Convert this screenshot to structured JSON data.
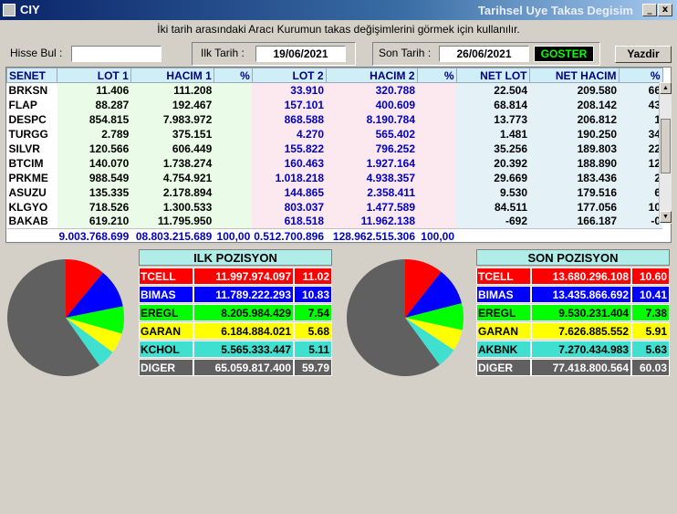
{
  "app": {
    "name": "CIY",
    "window_title": "Tarihsel Uye Takas Degisim",
    "instruction": "İki tarih arasındaki  Aracı Kurumun takas değişimlerini görmek için kullanılır."
  },
  "window_buttons": {
    "minimize": "_",
    "close": "x"
  },
  "controls": {
    "hisse_label": "Hisse Bul :",
    "hisse_value": "",
    "ilk_label": "Ilk Tarih :",
    "ilk_value": "19/06/2021",
    "son_label": "Son Tarih :",
    "son_value": "26/06/2021",
    "goster_label": "GOSTER",
    "yazdir_label": "Yazdir"
  },
  "table": {
    "headers": [
      "SENET",
      "LOT 1",
      "HACIM 1",
      "%",
      "LOT 2",
      "HACIM 2",
      "%",
      "NET LOT",
      "NET HACIM",
      "%"
    ],
    "rows": [
      [
        "BRKSN",
        "11.406",
        "111.208",
        "",
        "33.910",
        "320.788",
        "",
        "22.504",
        "209.580",
        "66"
      ],
      [
        "FLAP",
        "88.287",
        "192.467",
        "",
        "157.101",
        "400.609",
        "",
        "68.814",
        "208.142",
        "43"
      ],
      [
        "DESPC",
        "854.815",
        "7.983.972",
        "",
        "868.588",
        "8.190.784",
        "",
        "13.773",
        "206.812",
        "1"
      ],
      [
        "TURGG",
        "2.789",
        "375.151",
        "",
        "4.270",
        "565.402",
        "",
        "1.481",
        "190.250",
        "34"
      ],
      [
        "SILVR",
        "120.566",
        "606.449",
        "",
        "155.822",
        "796.252",
        "",
        "35.256",
        "189.803",
        "22"
      ],
      [
        "BTCIM",
        "140.070",
        "1.738.274",
        "",
        "160.463",
        "1.927.164",
        "",
        "20.392",
        "188.890",
        "12"
      ],
      [
        "PRKME",
        "988.549",
        "4.754.921",
        "",
        "1.018.218",
        "4.938.357",
        "",
        "29.669",
        "183.436",
        "2"
      ],
      [
        "ASUZU",
        "135.335",
        "2.178.894",
        "",
        "144.865",
        "2.358.411",
        "",
        "9.530",
        "179.516",
        "6"
      ],
      [
        "KLGYO",
        "718.526",
        "1.300.533",
        "",
        "803.037",
        "1.477.589",
        "",
        "84.511",
        "177.056",
        "10"
      ],
      [
        "BAKAB",
        "619.210",
        "11.795.950",
        "",
        "618.518",
        "11.962.138",
        "",
        "-692",
        "166.187",
        "-0"
      ]
    ],
    "totals": [
      "",
      "9.003.768.699",
      "08.803.215.689",
      "100,00",
      "0.512.700.896",
      "128.962.515.306",
      "100,00",
      "",
      "",
      ""
    ]
  },
  "ilk_pozisyon": {
    "title": "ILK POZISYON",
    "rows": [
      {
        "name": "TCELL",
        "value": "11.997.974.097",
        "pct": "11.02",
        "bg": "#ff0000",
        "fg": "#ffffff",
        "share": 11.02
      },
      {
        "name": "BIMAS",
        "value": "11.789.222.293",
        "pct": "10.83",
        "bg": "#0000ff",
        "fg": "#ffffff",
        "share": 10.83
      },
      {
        "name": "EREGL",
        "value": "8.205.984.429",
        "pct": "7.54",
        "bg": "#00ff00",
        "fg": "#000000",
        "share": 7.54
      },
      {
        "name": "GARAN",
        "value": "6.184.884.021",
        "pct": "5.68",
        "bg": "#ffff00",
        "fg": "#000000",
        "share": 5.68
      },
      {
        "name": "KCHOL",
        "value": "5.565.333.447",
        "pct": "5.11",
        "bg": "#40e0d0",
        "fg": "#000000",
        "share": 5.11
      },
      {
        "name": "DIGER",
        "value": "65.059.817.400",
        "pct": "59.79",
        "bg": "#606060",
        "fg": "#ffffff",
        "share": 59.79
      }
    ]
  },
  "son_pozisyon": {
    "title": "SON POZISYON",
    "rows": [
      {
        "name": "TCELL",
        "value": "13.680.296.108",
        "pct": "10.60",
        "bg": "#ff0000",
        "fg": "#ffffff",
        "share": 10.6
      },
      {
        "name": "BIMAS",
        "value": "13.435.866.692",
        "pct": "10.41",
        "bg": "#0000ff",
        "fg": "#ffffff",
        "share": 10.41
      },
      {
        "name": "EREGL",
        "value": "9.530.231.404",
        "pct": "7.38",
        "bg": "#00ff00",
        "fg": "#000000",
        "share": 7.38
      },
      {
        "name": "GARAN",
        "value": "7.626.885.552",
        "pct": "5.91",
        "bg": "#ffff00",
        "fg": "#000000",
        "share": 5.91
      },
      {
        "name": "AKBNK",
        "value": "7.270.434.983",
        "pct": "5.63",
        "bg": "#40e0d0",
        "fg": "#000000",
        "share": 5.63
      },
      {
        "name": "DIGER",
        "value": "77.418.800.564",
        "pct": "60.03",
        "bg": "#606060",
        "fg": "#ffffff",
        "share": 60.03
      }
    ]
  }
}
